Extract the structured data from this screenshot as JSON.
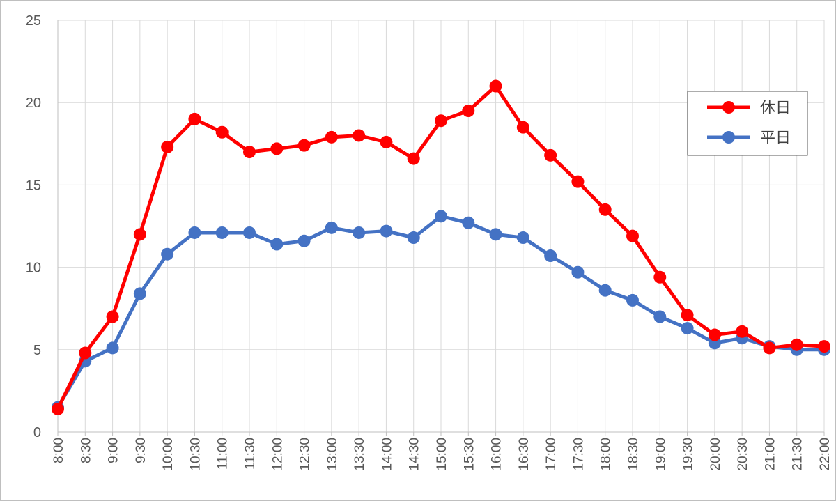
{
  "chart_data": {
    "type": "line",
    "x": [
      "8:00",
      "8:30",
      "9:00",
      "9:30",
      "10:00",
      "10:30",
      "11:00",
      "11:30",
      "12:00",
      "12:30",
      "13:00",
      "13:30",
      "14:00",
      "14:30",
      "15:00",
      "15:30",
      "16:00",
      "16:30",
      "17:00",
      "17:30",
      "18:00",
      "18:30",
      "19:00",
      "19:30",
      "20:00",
      "20:30",
      "21:00",
      "21:30",
      "22:00"
    ],
    "series": [
      {
        "name": "休日",
        "color": "#ff0000",
        "values": [
          1.4,
          4.8,
          7.0,
          12.0,
          17.3,
          19.0,
          18.2,
          17.0,
          17.2,
          17.4,
          17.9,
          18.0,
          17.6,
          16.6,
          18.9,
          19.5,
          21.0,
          18.5,
          16.8,
          15.2,
          13.5,
          11.9,
          9.4,
          7.1,
          5.9,
          6.1,
          5.1,
          5.3,
          5.2
        ]
      },
      {
        "name": "平日",
        "color": "#4472c4",
        "values": [
          1.5,
          4.3,
          5.1,
          8.4,
          10.8,
          12.1,
          12.1,
          12.1,
          11.4,
          11.6,
          12.4,
          12.1,
          12.2,
          11.8,
          13.1,
          12.7,
          12.0,
          11.8,
          10.7,
          9.7,
          8.6,
          8.0,
          7.0,
          6.3,
          5.4,
          5.7,
          5.2,
          5.0,
          5.0
        ]
      }
    ],
    "ylim": [
      0,
      25
    ],
    "yticks": [
      "0",
      "5",
      "10",
      "15",
      "20",
      "25"
    ],
    "grid": true,
    "legend_position": "right",
    "title": "",
    "xlabel": "",
    "ylabel": ""
  }
}
